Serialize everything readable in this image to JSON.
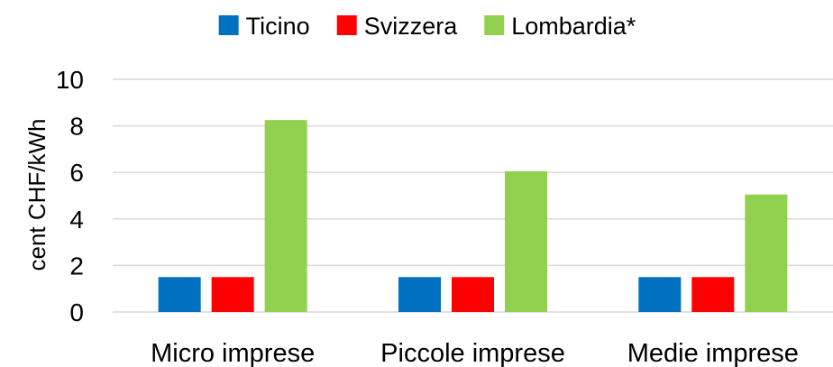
{
  "chart_data": {
    "type": "bar",
    "title": "",
    "xlabel": "",
    "ylabel": "cent CHF/kWh",
    "ylim": [
      0,
      10
    ],
    "yticks": [
      0,
      2,
      4,
      6,
      8,
      10
    ],
    "grid": true,
    "legend": "top",
    "categories": [
      "Micro imprese",
      "Piccole imprese",
      "Medie imprese"
    ],
    "series": [
      {
        "name": "Ticino",
        "color": "#0070C0",
        "values": [
          1.5,
          1.5,
          1.5
        ]
      },
      {
        "name": "Svizzera",
        "color": "#FF0000",
        "values": [
          1.5,
          1.5,
          1.5
        ]
      },
      {
        "name": "Lombardia*",
        "color": "#92D050",
        "values": [
          8.25,
          6.05,
          5.05
        ]
      }
    ]
  }
}
